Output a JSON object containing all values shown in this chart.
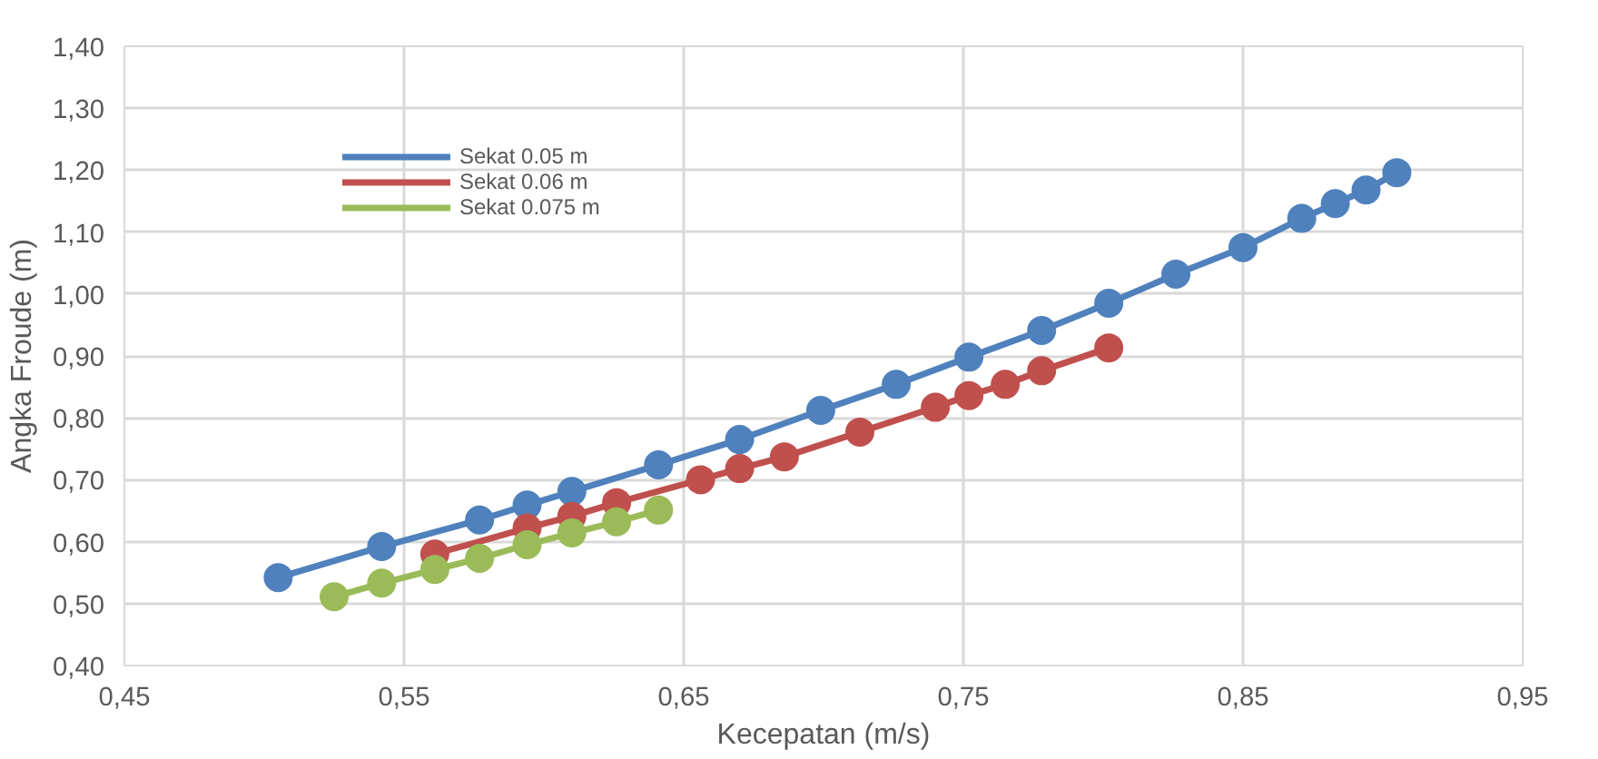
{
  "chart_data": {
    "type": "line",
    "xlabel": "Kecepatan (m/s)",
    "ylabel": "Angka Froude (m)",
    "xlim": [
      0.45,
      0.95
    ],
    "ylim": [
      0.4,
      1.4
    ],
    "xticks": [
      {
        "value": 0.45,
        "label": "0,45"
      },
      {
        "value": 0.55,
        "label": "0,55"
      },
      {
        "value": 0.65,
        "label": "0,65"
      },
      {
        "value": 0.75,
        "label": "0,75"
      },
      {
        "value": 0.85,
        "label": "0,85"
      },
      {
        "value": 0.95,
        "label": "0,95"
      }
    ],
    "yticks": [
      {
        "value": 0.4,
        "label": "0,40"
      },
      {
        "value": 0.5,
        "label": "0,50"
      },
      {
        "value": 0.6,
        "label": "0,60"
      },
      {
        "value": 0.7,
        "label": "0,70"
      },
      {
        "value": 0.8,
        "label": "0,80"
      },
      {
        "value": 0.9,
        "label": "0,90"
      },
      {
        "value": 1.0,
        "label": "1,00"
      },
      {
        "value": 1.1,
        "label": "1,10"
      },
      {
        "value": 1.2,
        "label": "1,20"
      },
      {
        "value": 1.3,
        "label": "1,30"
      },
      {
        "value": 1.4,
        "label": "1,40"
      }
    ],
    "grid": true,
    "legend": "top left",
    "marker": "circle",
    "line_style": "solid",
    "series": [
      {
        "name": "Sekat 0.05 m",
        "color": "#4f81bd",
        "x": [
          0.505,
          0.542,
          0.577,
          0.594,
          0.61,
          0.641,
          0.67,
          0.699,
          0.726,
          0.752,
          0.778,
          0.802,
          0.826,
          0.85,
          0.871,
          0.883,
          0.894,
          0.905
        ],
        "values": [
          0.542,
          0.592,
          0.635,
          0.659,
          0.681,
          0.724,
          0.765,
          0.812,
          0.854,
          0.898,
          0.941,
          0.985,
          1.032,
          1.075,
          1.122,
          1.146,
          1.168,
          1.196
        ]
      },
      {
        "name": "Sekat 0.06 m",
        "color": "#c0504d",
        "x": [
          0.561,
          0.594,
          0.61,
          0.626,
          0.656,
          0.67,
          0.686,
          0.713,
          0.74,
          0.752,
          0.765,
          0.778,
          0.802
        ],
        "values": [
          0.58,
          0.622,
          0.641,
          0.663,
          0.7,
          0.718,
          0.737,
          0.777,
          0.817,
          0.836,
          0.854,
          0.876,
          0.913
        ]
      },
      {
        "name": "Sekat 0.075 m",
        "color": "#9bbb59",
        "x": [
          0.525,
          0.542,
          0.561,
          0.577,
          0.594,
          0.61,
          0.626,
          0.641
        ],
        "values": [
          0.511,
          0.533,
          0.555,
          0.573,
          0.595,
          0.614,
          0.632,
          0.651
        ]
      }
    ]
  }
}
